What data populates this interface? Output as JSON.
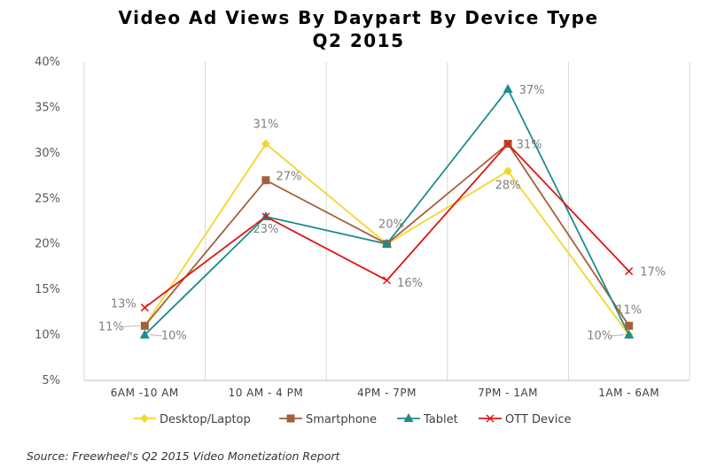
{
  "chart_data": {
    "type": "line",
    "title_line1": "Video Ad Views By Daypart By Device Type",
    "title_line2": "Q2 2015",
    "categories": [
      "6AM -10 AM",
      "10 AM - 4 PM",
      "4PM - 7PM",
      "7PM - 1AM",
      "1AM - 6AM"
    ],
    "y_ticks": [
      "5%",
      "10%",
      "15%",
      "20%",
      "25%",
      "30%",
      "35%",
      "40%"
    ],
    "ylim": [
      5,
      40
    ],
    "grid": "vertical",
    "legend_position": "bottom",
    "series": [
      {
        "name": "Desktop/Laptop",
        "values": [
          11,
          31,
          20,
          28,
          10
        ],
        "labels": [
          "",
          "31%",
          "",
          "28%",
          "10%"
        ],
        "color": "#F2D72E",
        "marker": "diamond"
      },
      {
        "name": "Smartphone",
        "values": [
          11,
          27,
          20,
          31,
          11
        ],
        "labels": [
          "11%",
          "27%",
          "",
          "",
          "11%"
        ],
        "color": "#A5603A",
        "marker": "square"
      },
      {
        "name": "Tablet",
        "values": [
          10,
          23,
          20,
          37,
          10
        ],
        "labels": [
          "10%",
          "23%",
          "20%",
          "37%",
          ""
        ],
        "color": "#1E8C8C",
        "marker": "triangle"
      },
      {
        "name": "OTT Device",
        "values": [
          13,
          23,
          16,
          31,
          17
        ],
        "labels": [
          "13%",
          "",
          "16%",
          "31%",
          "17%"
        ],
        "color": "#E0140F",
        "marker": "x"
      }
    ]
  },
  "source": "Source: Freewheel's Q2 2015 Video Monetization Report"
}
